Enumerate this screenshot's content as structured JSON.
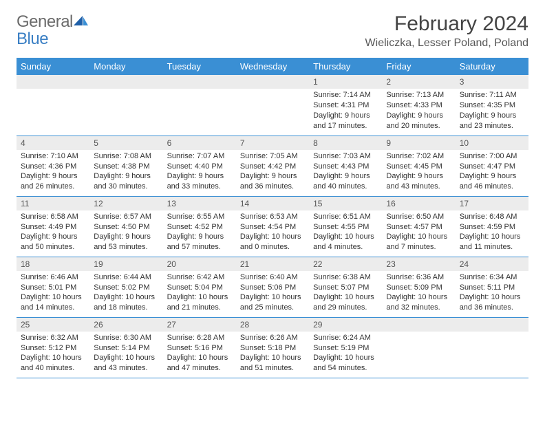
{
  "brand": {
    "general": "General",
    "blue": "Blue"
  },
  "title": "February 2024",
  "location": "Wieliczka, Lesser Poland, Poland",
  "colors": {
    "accent": "#3a8fd4",
    "header_bg": "#3a8fd4",
    "daynum_bg": "#ececec",
    "border": "#3a8fd4"
  },
  "weekdays": [
    "Sunday",
    "Monday",
    "Tuesday",
    "Wednesday",
    "Thursday",
    "Friday",
    "Saturday"
  ],
  "weeks": [
    [
      null,
      null,
      null,
      null,
      {
        "n": "1",
        "sunrise": "Sunrise: 7:14 AM",
        "sunset": "Sunset: 4:31 PM",
        "daylight1": "Daylight: 9 hours",
        "daylight2": "and 17 minutes."
      },
      {
        "n": "2",
        "sunrise": "Sunrise: 7:13 AM",
        "sunset": "Sunset: 4:33 PM",
        "daylight1": "Daylight: 9 hours",
        "daylight2": "and 20 minutes."
      },
      {
        "n": "3",
        "sunrise": "Sunrise: 7:11 AM",
        "sunset": "Sunset: 4:35 PM",
        "daylight1": "Daylight: 9 hours",
        "daylight2": "and 23 minutes."
      }
    ],
    [
      {
        "n": "4",
        "sunrise": "Sunrise: 7:10 AM",
        "sunset": "Sunset: 4:36 PM",
        "daylight1": "Daylight: 9 hours",
        "daylight2": "and 26 minutes."
      },
      {
        "n": "5",
        "sunrise": "Sunrise: 7:08 AM",
        "sunset": "Sunset: 4:38 PM",
        "daylight1": "Daylight: 9 hours",
        "daylight2": "and 30 minutes."
      },
      {
        "n": "6",
        "sunrise": "Sunrise: 7:07 AM",
        "sunset": "Sunset: 4:40 PM",
        "daylight1": "Daylight: 9 hours",
        "daylight2": "and 33 minutes."
      },
      {
        "n": "7",
        "sunrise": "Sunrise: 7:05 AM",
        "sunset": "Sunset: 4:42 PM",
        "daylight1": "Daylight: 9 hours",
        "daylight2": "and 36 minutes."
      },
      {
        "n": "8",
        "sunrise": "Sunrise: 7:03 AM",
        "sunset": "Sunset: 4:43 PM",
        "daylight1": "Daylight: 9 hours",
        "daylight2": "and 40 minutes."
      },
      {
        "n": "9",
        "sunrise": "Sunrise: 7:02 AM",
        "sunset": "Sunset: 4:45 PM",
        "daylight1": "Daylight: 9 hours",
        "daylight2": "and 43 minutes."
      },
      {
        "n": "10",
        "sunrise": "Sunrise: 7:00 AM",
        "sunset": "Sunset: 4:47 PM",
        "daylight1": "Daylight: 9 hours",
        "daylight2": "and 46 minutes."
      }
    ],
    [
      {
        "n": "11",
        "sunrise": "Sunrise: 6:58 AM",
        "sunset": "Sunset: 4:49 PM",
        "daylight1": "Daylight: 9 hours",
        "daylight2": "and 50 minutes."
      },
      {
        "n": "12",
        "sunrise": "Sunrise: 6:57 AM",
        "sunset": "Sunset: 4:50 PM",
        "daylight1": "Daylight: 9 hours",
        "daylight2": "and 53 minutes."
      },
      {
        "n": "13",
        "sunrise": "Sunrise: 6:55 AM",
        "sunset": "Sunset: 4:52 PM",
        "daylight1": "Daylight: 9 hours",
        "daylight2": "and 57 minutes."
      },
      {
        "n": "14",
        "sunrise": "Sunrise: 6:53 AM",
        "sunset": "Sunset: 4:54 PM",
        "daylight1": "Daylight: 10 hours",
        "daylight2": "and 0 minutes."
      },
      {
        "n": "15",
        "sunrise": "Sunrise: 6:51 AM",
        "sunset": "Sunset: 4:55 PM",
        "daylight1": "Daylight: 10 hours",
        "daylight2": "and 4 minutes."
      },
      {
        "n": "16",
        "sunrise": "Sunrise: 6:50 AM",
        "sunset": "Sunset: 4:57 PM",
        "daylight1": "Daylight: 10 hours",
        "daylight2": "and 7 minutes."
      },
      {
        "n": "17",
        "sunrise": "Sunrise: 6:48 AM",
        "sunset": "Sunset: 4:59 PM",
        "daylight1": "Daylight: 10 hours",
        "daylight2": "and 11 minutes."
      }
    ],
    [
      {
        "n": "18",
        "sunrise": "Sunrise: 6:46 AM",
        "sunset": "Sunset: 5:01 PM",
        "daylight1": "Daylight: 10 hours",
        "daylight2": "and 14 minutes."
      },
      {
        "n": "19",
        "sunrise": "Sunrise: 6:44 AM",
        "sunset": "Sunset: 5:02 PM",
        "daylight1": "Daylight: 10 hours",
        "daylight2": "and 18 minutes."
      },
      {
        "n": "20",
        "sunrise": "Sunrise: 6:42 AM",
        "sunset": "Sunset: 5:04 PM",
        "daylight1": "Daylight: 10 hours",
        "daylight2": "and 21 minutes."
      },
      {
        "n": "21",
        "sunrise": "Sunrise: 6:40 AM",
        "sunset": "Sunset: 5:06 PM",
        "daylight1": "Daylight: 10 hours",
        "daylight2": "and 25 minutes."
      },
      {
        "n": "22",
        "sunrise": "Sunrise: 6:38 AM",
        "sunset": "Sunset: 5:07 PM",
        "daylight1": "Daylight: 10 hours",
        "daylight2": "and 29 minutes."
      },
      {
        "n": "23",
        "sunrise": "Sunrise: 6:36 AM",
        "sunset": "Sunset: 5:09 PM",
        "daylight1": "Daylight: 10 hours",
        "daylight2": "and 32 minutes."
      },
      {
        "n": "24",
        "sunrise": "Sunrise: 6:34 AM",
        "sunset": "Sunset: 5:11 PM",
        "daylight1": "Daylight: 10 hours",
        "daylight2": "and 36 minutes."
      }
    ],
    [
      {
        "n": "25",
        "sunrise": "Sunrise: 6:32 AM",
        "sunset": "Sunset: 5:12 PM",
        "daylight1": "Daylight: 10 hours",
        "daylight2": "and 40 minutes."
      },
      {
        "n": "26",
        "sunrise": "Sunrise: 6:30 AM",
        "sunset": "Sunset: 5:14 PM",
        "daylight1": "Daylight: 10 hours",
        "daylight2": "and 43 minutes."
      },
      {
        "n": "27",
        "sunrise": "Sunrise: 6:28 AM",
        "sunset": "Sunset: 5:16 PM",
        "daylight1": "Daylight: 10 hours",
        "daylight2": "and 47 minutes."
      },
      {
        "n": "28",
        "sunrise": "Sunrise: 6:26 AM",
        "sunset": "Sunset: 5:18 PM",
        "daylight1": "Daylight: 10 hours",
        "daylight2": "and 51 minutes."
      },
      {
        "n": "29",
        "sunrise": "Sunrise: 6:24 AM",
        "sunset": "Sunset: 5:19 PM",
        "daylight1": "Daylight: 10 hours",
        "daylight2": "and 54 minutes."
      },
      null,
      null
    ]
  ]
}
